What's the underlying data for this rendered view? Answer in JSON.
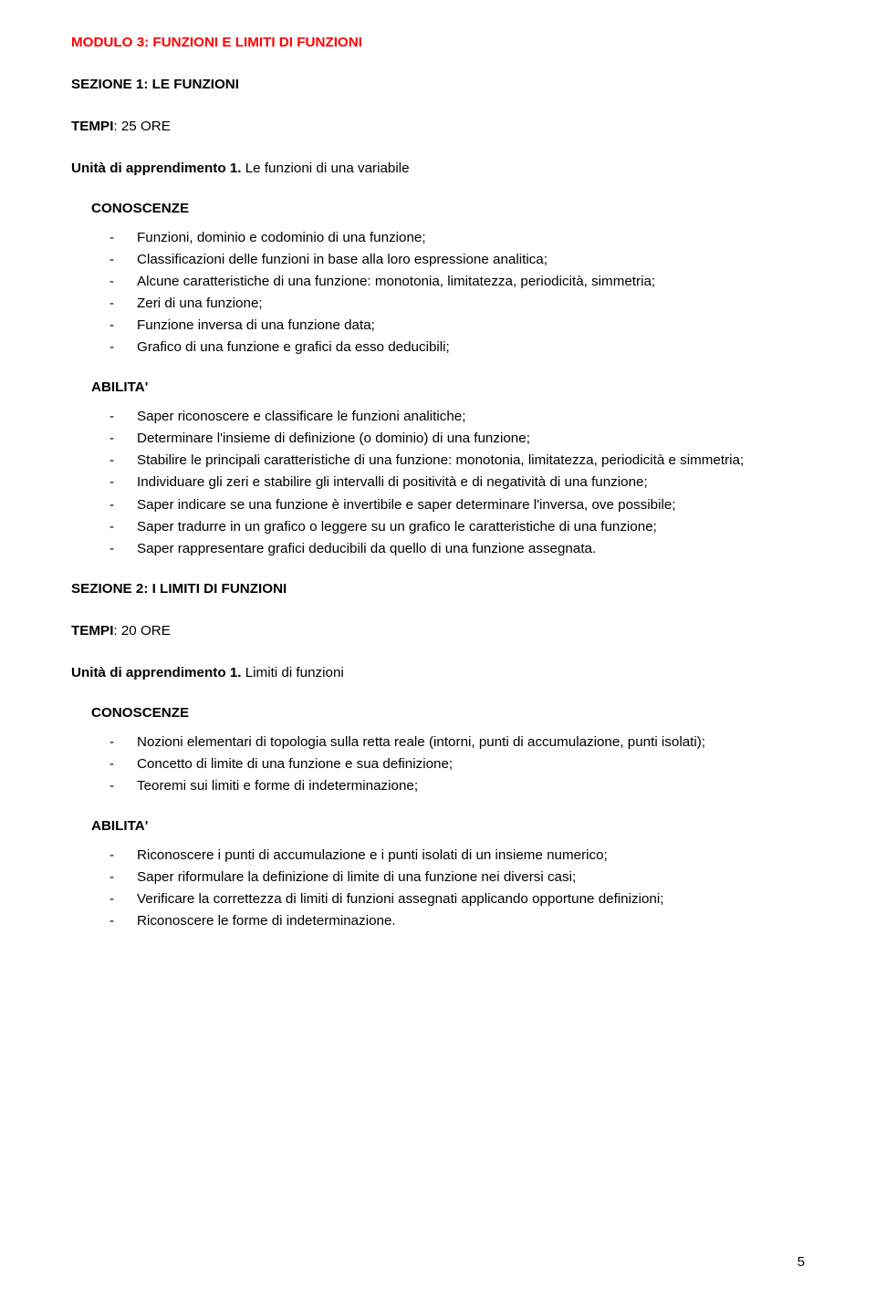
{
  "modulo_title": "MODULO 3: FUNZIONI E LIMITI DI FUNZIONI",
  "sezione1": {
    "title": "SEZIONE 1: LE FUNZIONI",
    "tempi_label": "TEMPI",
    "tempi_value": ": 25 ORE",
    "unita": {
      "title": "Unità di apprendimento 1.",
      "suffix": " Le funzioni di una variabile",
      "conoscenze_label": "CONOSCENZE",
      "conoscenze": [
        "Funzioni, dominio e codominio di una funzione;",
        "Classificazioni delle funzioni in base alla loro espressione analitica;",
        "Alcune caratteristiche di una funzione: monotonia, limitatezza, periodicità, simmetria;",
        "Zeri di una funzione;",
        "Funzione inversa di una funzione data;",
        "Grafico di una funzione e grafici da esso deducibili;"
      ],
      "abilita_label": "ABILITA'",
      "abilita": [
        "Saper riconoscere e classificare le funzioni analitiche;",
        "Determinare l'insieme di definizione (o dominio) di una funzione;",
        "Stabilire le principali caratteristiche di una funzione: monotonia, limitatezza, periodicità e simmetria;",
        "Individuare gli zeri e stabilire gli intervalli di positività e di negatività di una funzione;",
        "Saper indicare se una funzione è invertibile e saper determinare l'inversa, ove possibile;",
        "Saper tradurre in un grafico o leggere su un grafico le caratteristiche di una funzione;",
        "Saper rappresentare grafici deducibili da quello di una funzione assegnata."
      ]
    }
  },
  "sezione2": {
    "title": "SEZIONE 2: I LIMITI DI FUNZIONI",
    "tempi_label": "TEMPI",
    "tempi_value": ": 20 ORE",
    "unita": {
      "title": "Unità di apprendimento 1.",
      "suffix": " Limiti di funzioni",
      "conoscenze_label": "CONOSCENZE",
      "conoscenze": [
        "Nozioni elementari di topologia sulla retta reale (intorni, punti di accumulazione, punti isolati);",
        "Concetto di limite di una funzione e sua definizione;",
        "Teoremi sui limiti e forme di indeterminazione;"
      ],
      "abilita_label": "ABILITA'",
      "abilita": [
        "Riconoscere i punti di accumulazione e i punti isolati di un insieme numerico;",
        "Saper riformulare la definizione di limite di una funzione nei diversi casi;",
        "Verificare la correttezza di limiti di funzioni assegnati applicando opportune definizioni;",
        "Riconoscere le forme di indeterminazione."
      ]
    }
  },
  "page_number": "5"
}
